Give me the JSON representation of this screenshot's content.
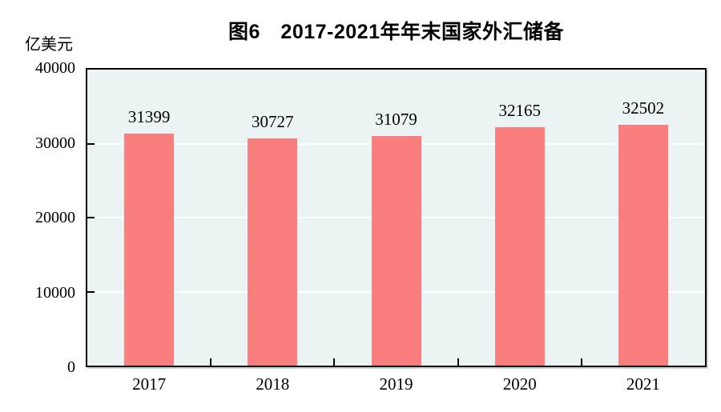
{
  "chart_data": {
    "type": "bar",
    "title": "图6　2017-2021年年末国家外汇储备",
    "unit_label": "亿美元",
    "categories": [
      "2017",
      "2018",
      "2019",
      "2020",
      "2021"
    ],
    "values": [
      31399,
      30727,
      31079,
      32165,
      32502
    ],
    "value_labels": [
      "31399",
      "30727",
      "31079",
      "32165",
      "32502"
    ],
    "xlabel": "",
    "ylabel": "亿美元",
    "ylim": [
      0,
      40000
    ],
    "yticks": [
      0,
      10000,
      20000,
      30000,
      40000
    ],
    "ytick_labels": [
      "0",
      "10000",
      "20000",
      "30000",
      "40000"
    ],
    "grid": "horizontal white gridlines at y ticks, behind bars",
    "legend": "none",
    "colors": {
      "bar": "#FB7E7E",
      "plot_background": "#EBF3F5",
      "gridline": "#FFFFFF",
      "axis_frame": "#000000",
      "text": "#000000",
      "page_background": "#FFFFFF"
    }
  }
}
